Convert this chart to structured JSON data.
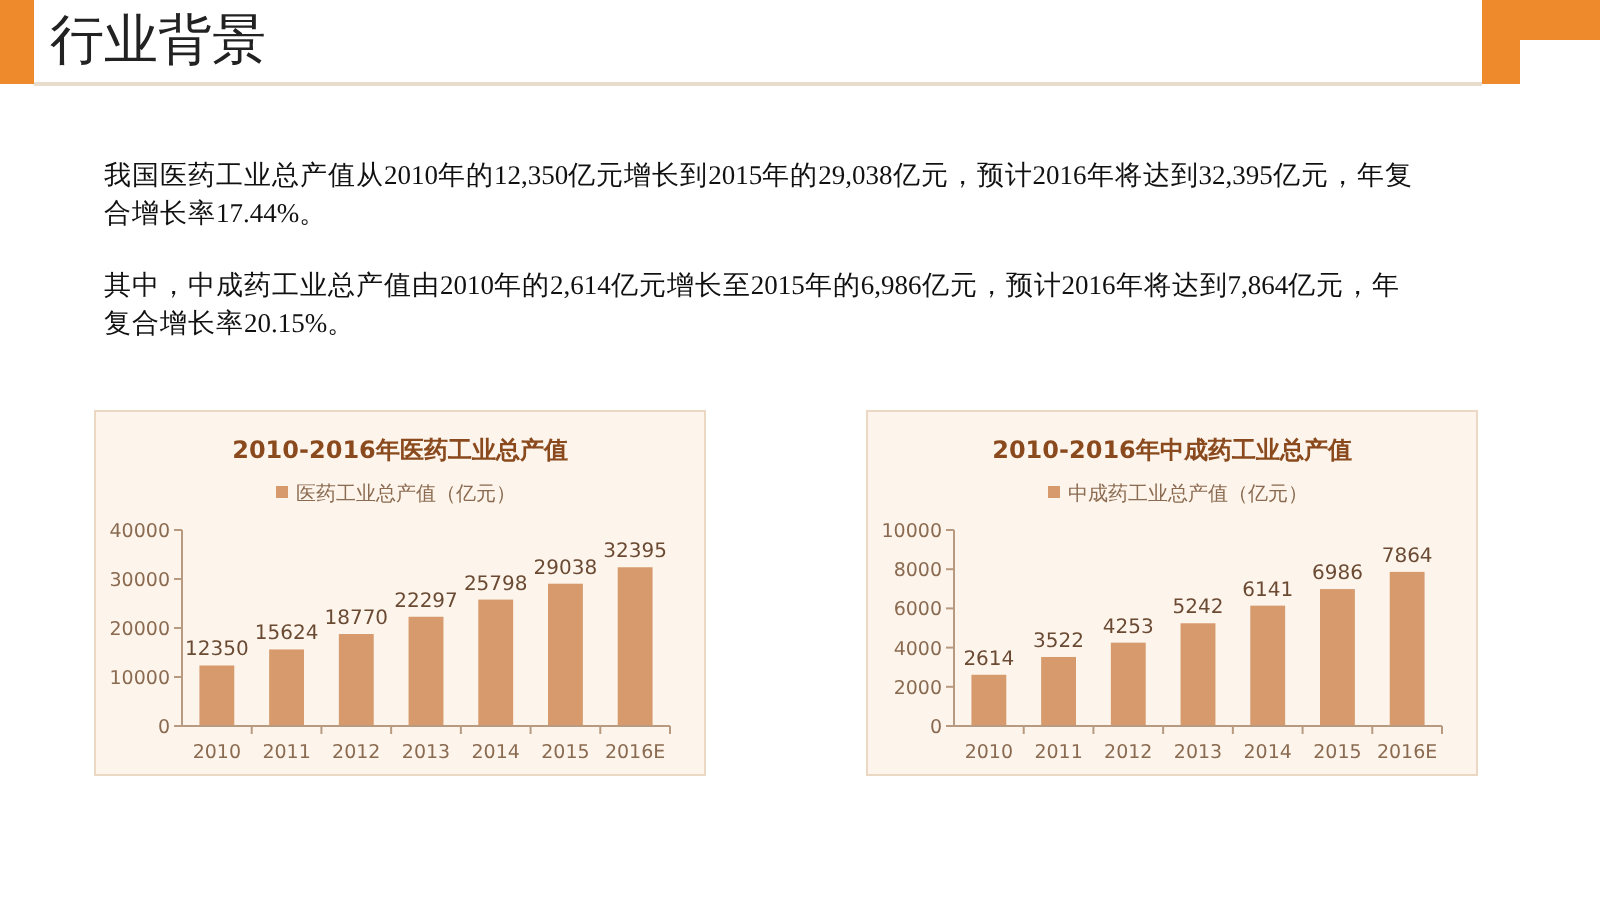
{
  "chart_data": [
    {
      "type": "other",
      "title": "行业背景",
      "annotations": [
        "我国医药工业总产值从2010年的12,350亿元增长到2015年的29,038亿元，预计2016年将达到32,395亿元，年复合增长率17.44%。",
        "其中，中成药工业总产值由2010年的2,614亿元增长至2015年的6,986亿元，预计2016年将达到7,864亿元，年复合增长率20.15%。"
      ]
    },
    {
      "type": "bar",
      "title": "2010-2016年医药工业总产值",
      "categories": [
        "2010",
        "2011",
        "2012",
        "2013",
        "2014",
        "2015",
        "2016E"
      ],
      "series": [
        {
          "name": "医药工业总产值（亿元）",
          "color": "#d69a6c",
          "values": [
            12350,
            15624,
            18770,
            22297,
            25798,
            29038,
            32395
          ]
        }
      ],
      "ylim": [
        0,
        40000
      ],
      "yticks": [
        0,
        10000,
        20000,
        30000,
        40000
      ],
      "data_labels": true,
      "legend": "top",
      "grid": false
    },
    {
      "type": "bar",
      "title": "2010-2016年中成药工业总产值",
      "categories": [
        "2010",
        "2011",
        "2012",
        "2013",
        "2014",
        "2015",
        "2016E"
      ],
      "series": [
        {
          "name": "中成药工业总产值（亿元）",
          "color": "#d69a6c",
          "values": [
            2614,
            3522,
            4253,
            5242,
            6141,
            6986,
            7864
          ]
        }
      ],
      "ylim": [
        0,
        10000
      ],
      "yticks": [
        0,
        2000,
        4000,
        6000,
        8000,
        10000
      ],
      "data_labels": true,
      "legend": "top",
      "grid": false
    }
  ]
}
